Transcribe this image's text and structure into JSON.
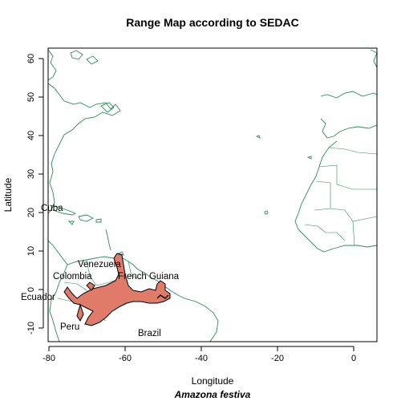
{
  "title": "Range Map according to SEDAC",
  "xlabel": "Longitude",
  "ylabel": "Latitude",
  "subtitle": "Amazona festiva",
  "x_ticks": [
    "-80",
    "-60",
    "-40",
    "-20",
    "0"
  ],
  "y_ticks": [
    "-10",
    "0",
    "10",
    "20",
    "30",
    "40",
    "50",
    "60"
  ],
  "places": {
    "cuba": "Cuba",
    "venezuela": "Venezuela",
    "colombia": "Colombia",
    "french_guiana": "French Guiana",
    "ecuador": "Ecuador",
    "peru": "Peru",
    "brazil": "Brazil"
  },
  "colors": {
    "coastline": "#2e8b57",
    "range_fill": "#e07b6a",
    "range_outline": "#000000"
  }
}
